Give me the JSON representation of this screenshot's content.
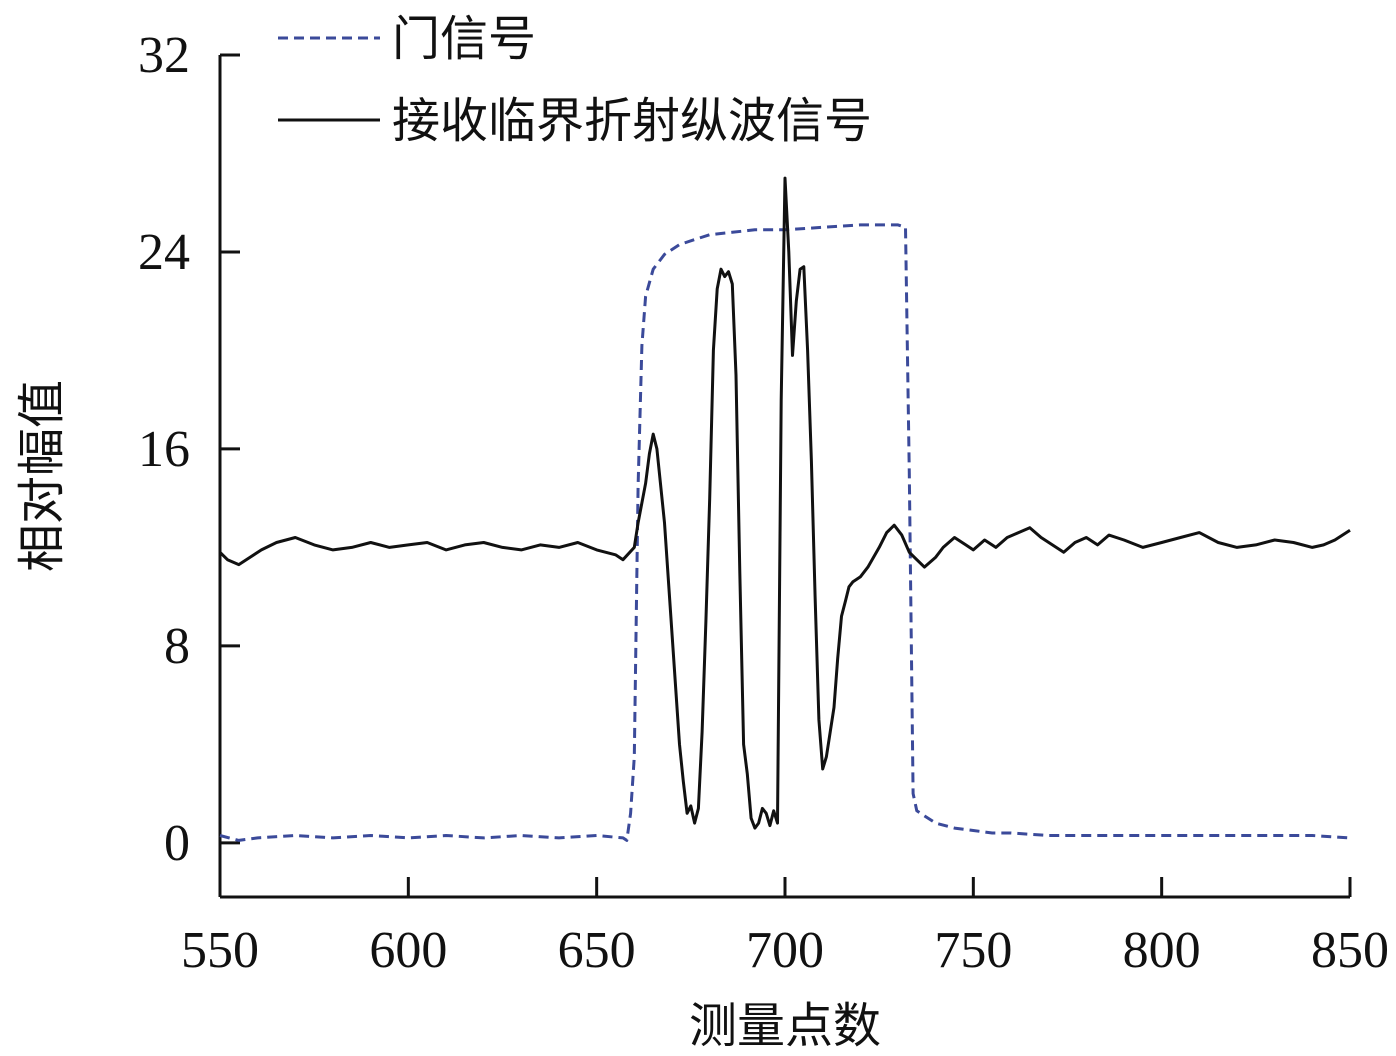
{
  "chart_data": {
    "type": "line",
    "title": "",
    "xlabel": "测量点数",
    "ylabel": "相对幅值",
    "xlim": [
      550,
      850
    ],
    "ylim": [
      -2.2,
      32
    ],
    "xticks": [
      550,
      600,
      650,
      700,
      750,
      800,
      850
    ],
    "yticks": [
      0,
      8,
      16,
      24,
      32
    ],
    "grid": false,
    "legend_position": "top-left",
    "series": [
      {
        "name": "门信号",
        "style": "dashed",
        "color": "#3b4a9a",
        "points": [
          [
            550,
            0.3
          ],
          [
            555,
            0.1
          ],
          [
            560,
            0.2
          ],
          [
            570,
            0.3
          ],
          [
            580,
            0.2
          ],
          [
            590,
            0.3
          ],
          [
            600,
            0.2
          ],
          [
            610,
            0.3
          ],
          [
            620,
            0.2
          ],
          [
            630,
            0.3
          ],
          [
            640,
            0.2
          ],
          [
            650,
            0.3
          ],
          [
            657,
            0.2
          ],
          [
            658,
            0.1
          ],
          [
            659,
            1.2
          ],
          [
            660,
            3.5
          ],
          [
            661,
            14.5
          ],
          [
            662,
            20.2
          ],
          [
            663,
            22.2
          ],
          [
            665,
            23.3
          ],
          [
            668,
            23.9
          ],
          [
            672,
            24.3
          ],
          [
            676,
            24.5
          ],
          [
            680,
            24.7
          ],
          [
            686,
            24.8
          ],
          [
            692,
            24.9
          ],
          [
            700,
            24.9
          ],
          [
            710,
            25.0
          ],
          [
            720,
            25.1
          ],
          [
            730,
            25.1
          ],
          [
            732,
            25.0
          ],
          [
            733,
            15.0
          ],
          [
            734,
            2.0
          ],
          [
            735,
            1.3
          ],
          [
            737,
            1.1
          ],
          [
            740,
            0.8
          ],
          [
            745,
            0.6
          ],
          [
            750,
            0.5
          ],
          [
            755,
            0.4
          ],
          [
            760,
            0.4
          ],
          [
            770,
            0.3
          ],
          [
            780,
            0.3
          ],
          [
            790,
            0.3
          ],
          [
            800,
            0.3
          ],
          [
            810,
            0.3
          ],
          [
            820,
            0.3
          ],
          [
            830,
            0.3
          ],
          [
            840,
            0.3
          ],
          [
            850,
            0.2
          ]
        ]
      },
      {
        "name": "接收临界折射纵波信号",
        "style": "solid",
        "color": "#111111",
        "points": [
          [
            550,
            11.8
          ],
          [
            552,
            11.5
          ],
          [
            555,
            11.3
          ],
          [
            558,
            11.6
          ],
          [
            561,
            11.9
          ],
          [
            565,
            12.2
          ],
          [
            570,
            12.4
          ],
          [
            575,
            12.1
          ],
          [
            580,
            11.9
          ],
          [
            585,
            12.0
          ],
          [
            590,
            12.2
          ],
          [
            595,
            12.0
          ],
          [
            600,
            12.1
          ],
          [
            605,
            12.2
          ],
          [
            610,
            11.9
          ],
          [
            615,
            12.1
          ],
          [
            620,
            12.2
          ],
          [
            625,
            12.0
          ],
          [
            630,
            11.9
          ],
          [
            635,
            12.1
          ],
          [
            640,
            12.0
          ],
          [
            645,
            12.2
          ],
          [
            650,
            11.9
          ],
          [
            655,
            11.7
          ],
          [
            657,
            11.5
          ],
          [
            660,
            12.0
          ],
          [
            661,
            13.0
          ],
          [
            663,
            14.6
          ],
          [
            664,
            15.8
          ],
          [
            665,
            16.6
          ],
          [
            666,
            16.0
          ],
          [
            668,
            13.0
          ],
          [
            670,
            8.5
          ],
          [
            672,
            4.0
          ],
          [
            673,
            2.5
          ],
          [
            674,
            1.2
          ],
          [
            675,
            1.5
          ],
          [
            676,
            0.8
          ],
          [
            677,
            1.4
          ],
          [
            678,
            4.5
          ],
          [
            679,
            9.0
          ],
          [
            680,
            14.0
          ],
          [
            681,
            20.0
          ],
          [
            682,
            22.5
          ],
          [
            683,
            23.3
          ],
          [
            684,
            23.0
          ],
          [
            685,
            23.2
          ],
          [
            686,
            22.7
          ],
          [
            687,
            19.0
          ],
          [
            688,
            11.0
          ],
          [
            689,
            4.0
          ],
          [
            690,
            2.8
          ],
          [
            691,
            1.0
          ],
          [
            692,
            0.6
          ],
          [
            693,
            0.8
          ],
          [
            694,
            1.4
          ],
          [
            695,
            1.2
          ],
          [
            696,
            0.7
          ],
          [
            697,
            1.3
          ],
          [
            698,
            0.8
          ],
          [
            699,
            18.0
          ],
          [
            700,
            27.0
          ],
          [
            701,
            24.0
          ],
          [
            702,
            19.8
          ],
          [
            703,
            22.0
          ],
          [
            704,
            23.3
          ],
          [
            705,
            23.4
          ],
          [
            706,
            20.0
          ],
          [
            707,
            15.5
          ],
          [
            708,
            10.0
          ],
          [
            709,
            5.0
          ],
          [
            710,
            3.0
          ],
          [
            711,
            3.5
          ],
          [
            712,
            4.5
          ],
          [
            713,
            5.5
          ],
          [
            714,
            7.5
          ],
          [
            715,
            9.2
          ],
          [
            716,
            9.8
          ],
          [
            717,
            10.4
          ],
          [
            718,
            10.6
          ],
          [
            720,
            10.8
          ],
          [
            722,
            11.2
          ],
          [
            725,
            12.0
          ],
          [
            727,
            12.6
          ],
          [
            729,
            12.9
          ],
          [
            731,
            12.5
          ],
          [
            733,
            11.8
          ],
          [
            735,
            11.5
          ],
          [
            737,
            11.2
          ],
          [
            740,
            11.6
          ],
          [
            742,
            12.0
          ],
          [
            745,
            12.4
          ],
          [
            748,
            12.1
          ],
          [
            750,
            11.9
          ],
          [
            753,
            12.3
          ],
          [
            756,
            12.0
          ],
          [
            759,
            12.4
          ],
          [
            762,
            12.6
          ],
          [
            765,
            12.8
          ],
          [
            768,
            12.4
          ],
          [
            771,
            12.1
          ],
          [
            774,
            11.8
          ],
          [
            777,
            12.2
          ],
          [
            780,
            12.4
          ],
          [
            783,
            12.1
          ],
          [
            786,
            12.5
          ],
          [
            790,
            12.3
          ],
          [
            795,
            12.0
          ],
          [
            800,
            12.2
          ],
          [
            805,
            12.4
          ],
          [
            810,
            12.6
          ],
          [
            815,
            12.2
          ],
          [
            820,
            12.0
          ],
          [
            825,
            12.1
          ],
          [
            830,
            12.3
          ],
          [
            835,
            12.2
          ],
          [
            840,
            12.0
          ],
          [
            843,
            12.1
          ],
          [
            846,
            12.3
          ],
          [
            850,
            12.7
          ]
        ]
      }
    ]
  }
}
